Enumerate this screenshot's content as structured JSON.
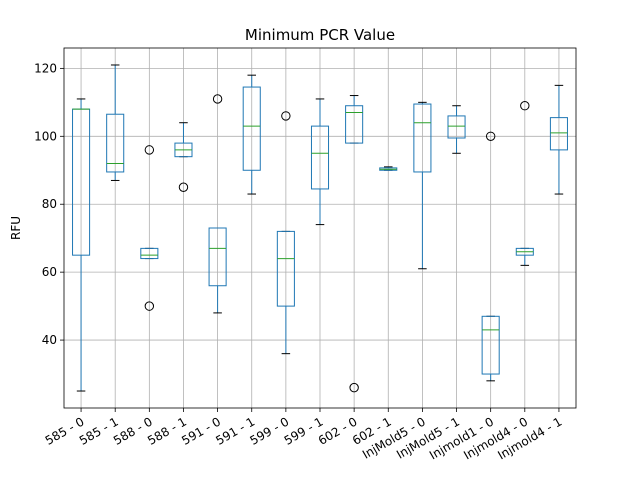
{
  "chart_data": {
    "type": "box",
    "title": "Minimum PCR Value",
    "ylabel": "RFU",
    "xlabel": "",
    "ylim": [
      20,
      126
    ],
    "yticks": [
      40,
      60,
      80,
      100,
      120
    ],
    "grid": true,
    "colors": {
      "box": "#1f77b4",
      "median": "#2ca02c",
      "whisker": "#000000",
      "grid": "#b0b0b0"
    },
    "categories": [
      "585 - 0",
      "585 - 1",
      "588 - 0",
      "588 - 1",
      "591 - 0",
      "591 - 1",
      "599 - 0",
      "599 - 1",
      "602 - 0",
      "602 - 1",
      "InjMold5 - 0",
      "InjMold5 - 1",
      "Injmold1 - 0",
      "Injmold4 - 0",
      "Injmold4 - 1"
    ],
    "boxes": [
      {
        "whislo": 25,
        "q1": 65,
        "med": 108,
        "q3": 108,
        "whishi": 111,
        "fliers": []
      },
      {
        "whislo": 87,
        "q1": 89.5,
        "med": 92,
        "q3": 106.5,
        "whishi": 121,
        "fliers": []
      },
      {
        "whislo": 64,
        "q1": 64,
        "med": 65,
        "q3": 67,
        "whishi": 67,
        "fliers": [
          96,
          50
        ]
      },
      {
        "whislo": 94,
        "q1": 94,
        "med": 96,
        "q3": 98,
        "whishi": 104,
        "fliers": [
          85
        ]
      },
      {
        "whislo": 48,
        "q1": 56,
        "med": 67,
        "q3": 73,
        "whishi": 73,
        "fliers": [
          111
        ]
      },
      {
        "whislo": 83,
        "q1": 90,
        "med": 103,
        "q3": 114.5,
        "whishi": 118,
        "fliers": []
      },
      {
        "whislo": 36,
        "q1": 50,
        "med": 64,
        "q3": 72,
        "whishi": 72,
        "fliers": [
          106
        ]
      },
      {
        "whislo": 74,
        "q1": 84.5,
        "med": 95,
        "q3": 103,
        "whishi": 111,
        "fliers": []
      },
      {
        "whislo": 98,
        "q1": 98,
        "med": 107,
        "q3": 109,
        "whishi": 112,
        "fliers": [
          26
        ]
      },
      {
        "whislo": 90,
        "q1": 90,
        "med": 90.3,
        "q3": 90.7,
        "whishi": 91,
        "fliers": []
      },
      {
        "whislo": 61,
        "q1": 89.5,
        "med": 104,
        "q3": 109.5,
        "whishi": 110,
        "fliers": []
      },
      {
        "whislo": 95,
        "q1": 99.5,
        "med": 103,
        "q3": 106,
        "whishi": 109,
        "fliers": []
      },
      {
        "whislo": 28,
        "q1": 30,
        "med": 43,
        "q3": 47,
        "whishi": 47,
        "fliers": [
          100
        ]
      },
      {
        "whislo": 62,
        "q1": 65,
        "med": 66,
        "q3": 67,
        "whishi": 67,
        "fliers": [
          109
        ]
      },
      {
        "whislo": 83,
        "q1": 96,
        "med": 101,
        "q3": 105.5,
        "whishi": 115,
        "fliers": []
      }
    ]
  }
}
